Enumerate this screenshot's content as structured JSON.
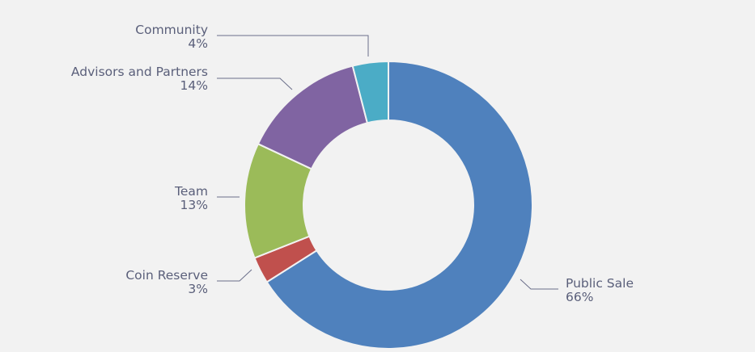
{
  "chart_data": {
    "type": "pie",
    "variant": "donut",
    "title": "",
    "slices": [
      {
        "label": "Public Sale",
        "pct_label": "66%",
        "value": 66,
        "color": "#4f81bd"
      },
      {
        "label": "Coin Reserve",
        "pct_label": "3%",
        "value": 3,
        "color": "#c0504d"
      },
      {
        "label": "Team",
        "pct_label": "13%",
        "value": 13,
        "color": "#9bbb59"
      },
      {
        "label": "Advisors and Partners",
        "pct_label": "14%",
        "value": 14,
        "color": "#8064a2"
      },
      {
        "label": "Community",
        "pct_label": "4%",
        "value": 4,
        "color": "#4bacc6"
      }
    ],
    "legend": "none",
    "label_placement": "outside-with-leader-lines"
  }
}
